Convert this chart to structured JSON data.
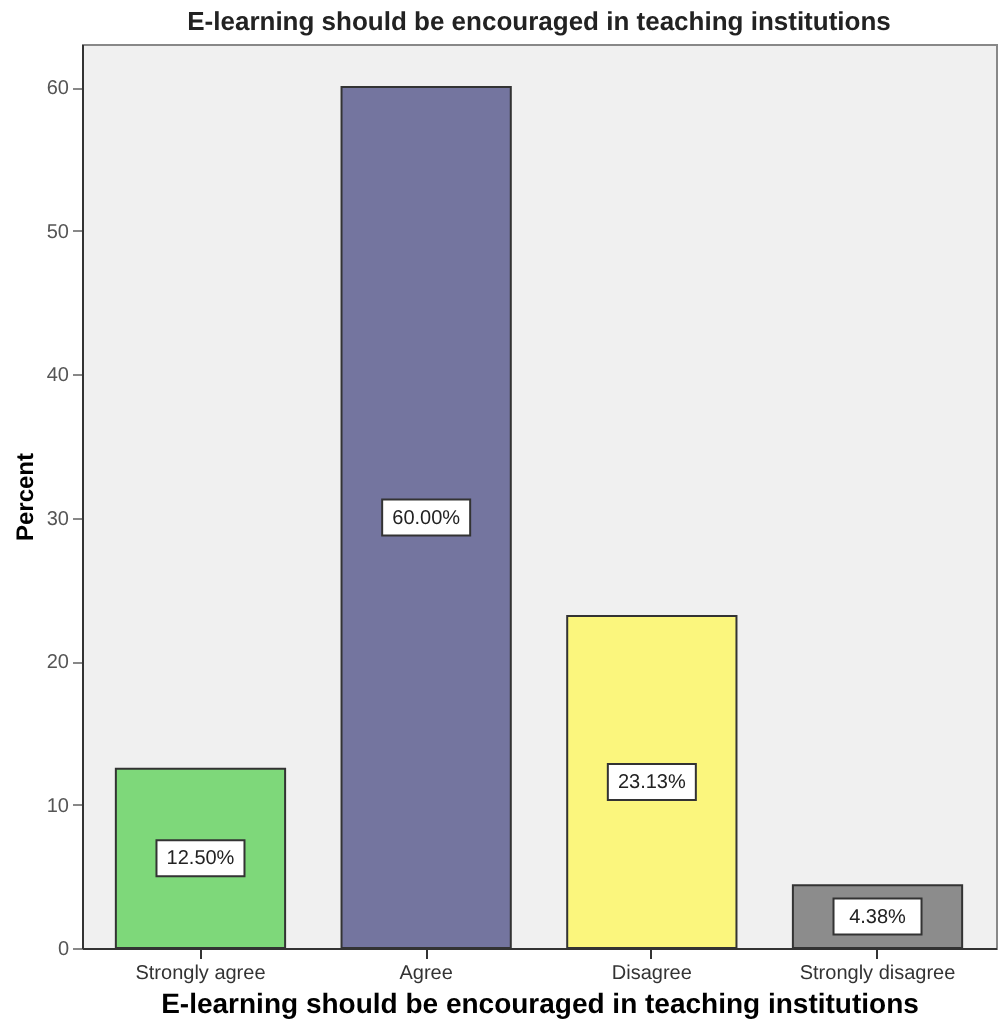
{
  "chart_data": {
    "type": "bar",
    "title": "E-learning should be encouraged in teaching institutions",
    "xlabel": "E-learning should be encouraged in teaching institutions",
    "ylabel": "Percent",
    "categories": [
      "Strongly agree",
      "Agree",
      "Disagree",
      "Strongly disagree"
    ],
    "values": [
      12.5,
      60,
      23.13,
      4.38
    ],
    "value_labels": [
      "12.50%",
      "60.00%",
      "23.13%",
      "4.38%"
    ],
    "colors": [
      "#7ed87a",
      "#74759f",
      "#fbf67d",
      "#8c8c8c"
    ],
    "ylim": [
      0,
      63
    ],
    "yticks": [
      0,
      10,
      20,
      30,
      40,
      50,
      60
    ],
    "grid": false
  }
}
